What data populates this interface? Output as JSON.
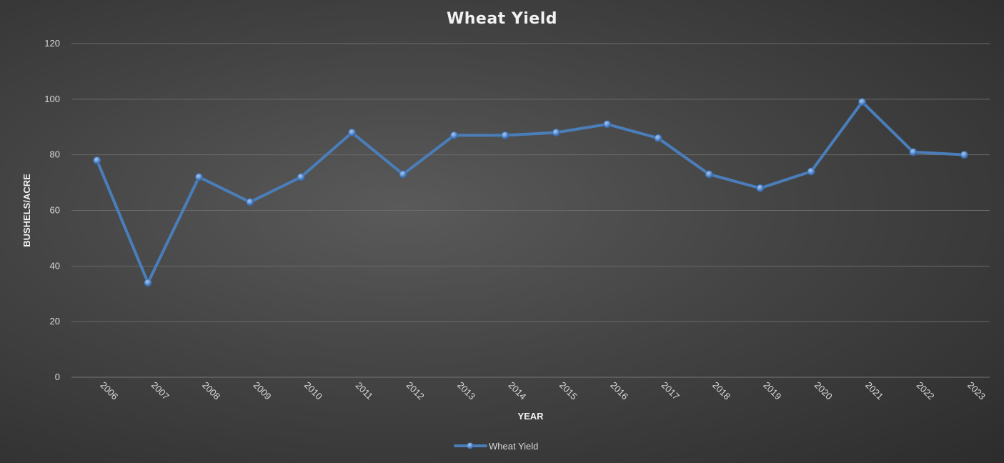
{
  "chart_data": {
    "type": "line",
    "title": "Wheat Yield",
    "xlabel": "YEAR",
    "ylabel": "BUSHELS/ACRE",
    "categories": [
      "2006",
      "2007",
      "2008",
      "2009",
      "2010",
      "2011",
      "2012",
      "2013",
      "2014",
      "2015",
      "2016",
      "2017",
      "2018",
      "2019",
      "2020",
      "2021",
      "2022",
      "2023"
    ],
    "series": [
      {
        "name": "Wheat Yield",
        "values": [
          78,
          34,
          72,
          63,
          72,
          88,
          73,
          87,
          87,
          88,
          91,
          86,
          73,
          68,
          74,
          99,
          81,
          80
        ]
      }
    ],
    "ylim": [
      0,
      120
    ],
    "yticks": [
      0,
      20,
      40,
      60,
      80,
      100,
      120
    ],
    "grid": true,
    "legend_position": "bottom",
    "colors": {
      "series": "#4a7ebb",
      "marker": "#5b8fd0",
      "grid": "#6a6a6a",
      "text": "#d9d9d9"
    }
  }
}
